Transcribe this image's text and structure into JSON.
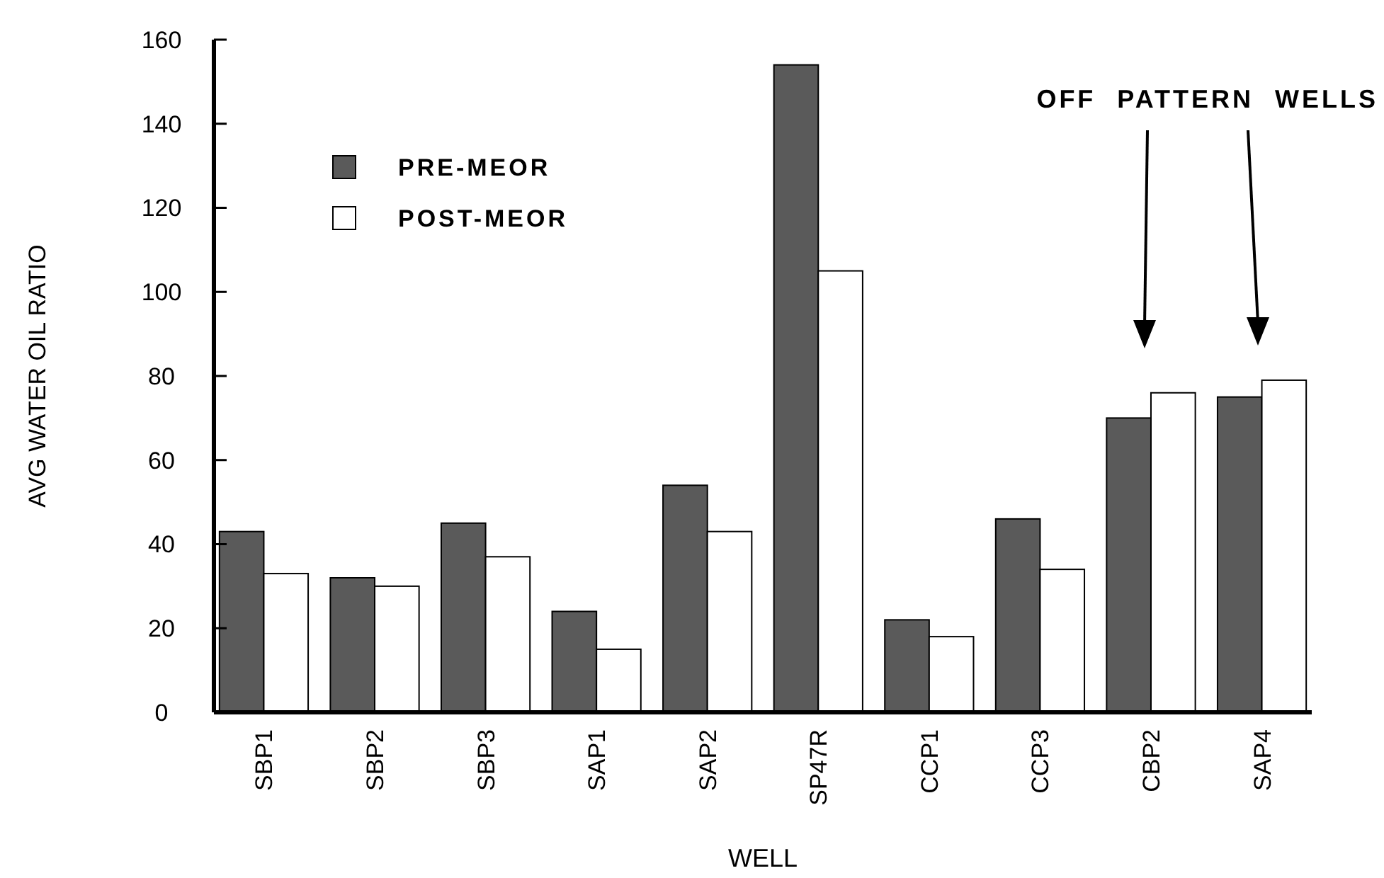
{
  "chart_data": {
    "type": "bar",
    "xlabel": "WELL",
    "ylabel": "AVG WATER OIL RATIO",
    "categories": [
      "SBP1",
      "SBP2",
      "SBP3",
      "SAP1",
      "SAP2",
      "SP47R",
      "CCP1",
      "CCP3",
      "CBP2",
      "SAP4"
    ],
    "series": [
      {
        "name": "PRE-MEOR",
        "color": "#5a5a5a",
        "values": [
          43,
          32,
          45,
          24,
          54,
          154,
          22,
          46,
          70,
          75
        ]
      },
      {
        "name": "POST-MEOR",
        "color": "#ffffff",
        "values": [
          33,
          30,
          37,
          15,
          43,
          105,
          18,
          34,
          76,
          79
        ]
      }
    ],
    "ylim": [
      0,
      160
    ],
    "yticks": [
      0,
      20,
      40,
      60,
      80,
      100,
      120,
      140,
      160
    ],
    "grid": false,
    "legend": "top left",
    "annotations": [
      "OFF PATTERN WELLS"
    ]
  }
}
